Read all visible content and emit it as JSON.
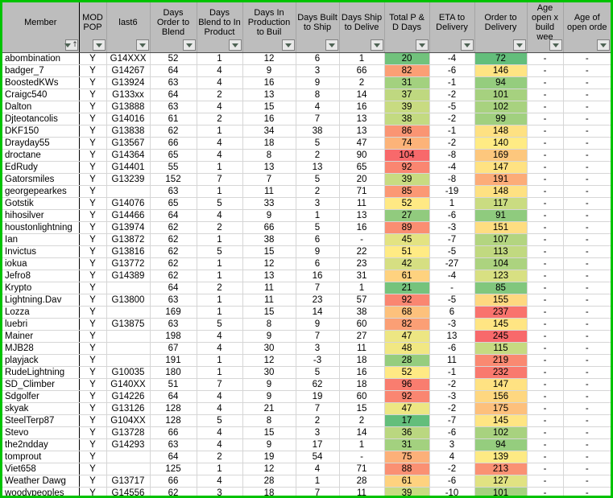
{
  "table": {
    "columns": [
      {
        "label": "Member",
        "sorted": "ascending"
      },
      {
        "label": "MOD POP"
      },
      {
        "label": "last6"
      },
      {
        "label": "Days Order to Blend"
      },
      {
        "label": "Days Blend to In Product"
      },
      {
        "label": "Days In Production to Buil"
      },
      {
        "label": "Days Built to Ship"
      },
      {
        "label": "Days Ship to Delive"
      },
      {
        "label": "Total P & D Days"
      },
      {
        "label": "ETA to Delivery"
      },
      {
        "label": "Order to Delivery"
      },
      {
        "label": "Age open x build wee"
      },
      {
        "label": "Age of open orde"
      }
    ],
    "rows": [
      [
        "abombination",
        "Y",
        "G14XXX",
        52,
        1,
        12,
        6,
        1,
        20,
        -4,
        72,
        "-",
        "-"
      ],
      [
        "badger_7",
        "Y",
        "G14267",
        64,
        4,
        9,
        3,
        66,
        82,
        -6,
        146,
        "-",
        "-"
      ],
      [
        "BoostedKWs",
        "Y",
        "G13924",
        63,
        4,
        16,
        9,
        2,
        31,
        -1,
        94,
        "-",
        "-"
      ],
      [
        "Craigc540",
        "Y",
        "G133xx",
        64,
        2,
        13,
        8,
        14,
        37,
        -2,
        101,
        "-",
        "-"
      ],
      [
        "Dalton",
        "Y",
        "G13888",
        63,
        4,
        15,
        4,
        16,
        39,
        -5,
        102,
        "-",
        "-"
      ],
      [
        "Djteotancolis",
        "Y",
        "G14016",
        61,
        2,
        16,
        7,
        13,
        38,
        -2,
        99,
        "-",
        "-"
      ],
      [
        "DKF150",
        "Y",
        "G13838",
        62,
        1,
        34,
        38,
        13,
        86,
        -1,
        148,
        "-",
        "-"
      ],
      [
        "Drayday55",
        "Y",
        "G13567",
        66,
        4,
        18,
        5,
        47,
        74,
        -2,
        140,
        "-",
        "-"
      ],
      [
        "droctane",
        "Y",
        "G14364",
        65,
        4,
        8,
        2,
        90,
        104,
        -8,
        169,
        "-",
        "-"
      ],
      [
        "EdRudy",
        "Y",
        "G14401",
        55,
        1,
        13,
        13,
        65,
        92,
        -4,
        147,
        "-",
        "-"
      ],
      [
        "Gatorsmiles",
        "Y",
        "G13239",
        152,
        7,
        7,
        5,
        20,
        39,
        -8,
        191,
        "-",
        "-"
      ],
      [
        "georgepearkes",
        "Y",
        "",
        63,
        1,
        11,
        2,
        71,
        85,
        -19,
        148,
        "-",
        "-"
      ],
      [
        "Gotstik",
        "Y",
        "G14076",
        65,
        5,
        33,
        3,
        11,
        52,
        1,
        117,
        "-",
        "-"
      ],
      [
        "hihosilver",
        "Y",
        "G14466",
        64,
        4,
        9,
        1,
        13,
        27,
        -6,
        91,
        "-",
        "-"
      ],
      [
        "houstonlightning",
        "Y",
        "G13974",
        62,
        2,
        66,
        5,
        16,
        89,
        -3,
        151,
        "-",
        "-"
      ],
      [
        "Ian",
        "Y",
        "G13872",
        62,
        1,
        38,
        6,
        "-",
        45,
        -7,
        107,
        "-",
        "-"
      ],
      [
        "Invictus",
        "Y",
        "G13816",
        62,
        5,
        15,
        9,
        22,
        51,
        -5,
        113,
        "-",
        "-"
      ],
      [
        "iokua",
        "Y",
        "G13772",
        62,
        1,
        12,
        6,
        23,
        42,
        -27,
        104,
        "-",
        "-"
      ],
      [
        "Jefro8",
        "Y",
        "G14389",
        62,
        1,
        13,
        16,
        31,
        61,
        -4,
        123,
        "-",
        "-"
      ],
      [
        "Krypto",
        "Y",
        "",
        64,
        2,
        11,
        7,
        1,
        21,
        "-",
        85,
        "-",
        "-"
      ],
      [
        "Lightning.Dav",
        "Y",
        "G13800",
        63,
        1,
        11,
        23,
        57,
        92,
        -5,
        155,
        "-",
        "-"
      ],
      [
        "Lozza",
        "Y",
        "",
        169,
        1,
        15,
        14,
        38,
        68,
        6,
        237,
        "-",
        "-"
      ],
      [
        "luebri",
        "Y",
        "G13875",
        63,
        5,
        8,
        9,
        60,
        82,
        -3,
        145,
        "-",
        "-"
      ],
      [
        "Mainer",
        "Y",
        "",
        198,
        4,
        9,
        7,
        27,
        47,
        13,
        245,
        "-",
        "-"
      ],
      [
        "MJB28",
        "Y",
        "",
        67,
        4,
        30,
        3,
        11,
        48,
        -6,
        115,
        "-",
        "-"
      ],
      [
        "playjack",
        "Y",
        "",
        191,
        1,
        12,
        -3,
        18,
        28,
        11,
        219,
        "-",
        "-"
      ],
      [
        "RudeLightning",
        "Y",
        "G10035",
        180,
        1,
        30,
        5,
        16,
        52,
        -1,
        232,
        "-",
        "-"
      ],
      [
        "SD_Climber",
        "Y",
        "G140XX",
        51,
        7,
        9,
        62,
        18,
        96,
        -2,
        147,
        "-",
        "-"
      ],
      [
        "Sdgolfer",
        "Y",
        "G14226",
        64,
        4,
        9,
        19,
        60,
        92,
        -3,
        156,
        "-",
        "-"
      ],
      [
        "skyak",
        "Y",
        "G13126",
        128,
        4,
        21,
        7,
        15,
        47,
        -2,
        175,
        "-",
        "-"
      ],
      [
        "SteelTerp87",
        "Y",
        "G104XX",
        128,
        5,
        8,
        2,
        2,
        17,
        -7,
        145,
        "-",
        "-"
      ],
      [
        "Stevo",
        "Y",
        "G13728",
        66,
        4,
        15,
        3,
        14,
        36,
        -6,
        102,
        "-",
        "-"
      ],
      [
        "the2ndday",
        "Y",
        "G14293",
        63,
        4,
        9,
        17,
        1,
        31,
        3,
        94,
        "-",
        "-"
      ],
      [
        "tomprout",
        "Y",
        "",
        64,
        2,
        19,
        54,
        "-",
        75,
        4,
        139,
        "-",
        "-"
      ],
      [
        "Viet658",
        "Y",
        "",
        125,
        1,
        12,
        4,
        71,
        88,
        -2,
        213,
        "-",
        "-"
      ],
      [
        "Weather Dawg",
        "Y",
        "G13717",
        66,
        4,
        28,
        1,
        28,
        61,
        -6,
        127,
        "-",
        "-"
      ],
      [
        "woodypeoples",
        "Y",
        "G14556",
        62,
        3,
        18,
        7,
        11,
        39,
        -10,
        101,
        "-",
        "-"
      ]
    ],
    "color_scale_columns": [
      8,
      10
    ]
  },
  "colors": {
    "header_bg": "#bdbdbd",
    "grid_line": "#d6d6d6",
    "member_divider": "#000000",
    "frame_green": "#00c300",
    "scale": {
      "min": "#63be7b",
      "mid": "#ffeb84",
      "max": "#f8696b"
    }
  }
}
